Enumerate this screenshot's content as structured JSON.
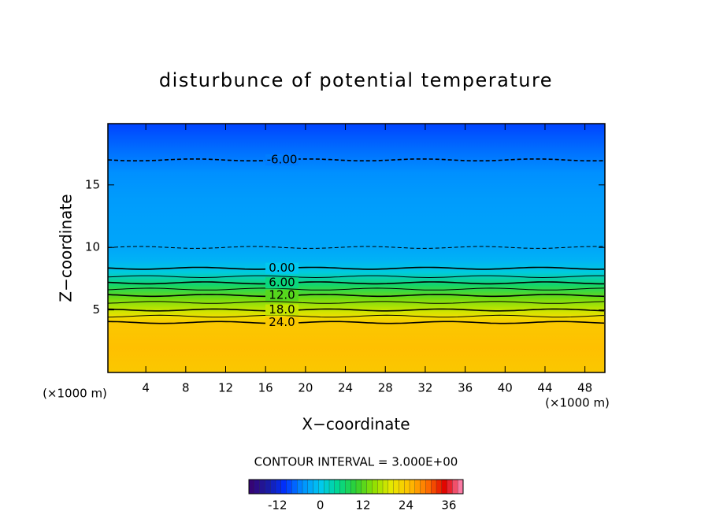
{
  "chart_data": {
    "type": "contour",
    "title": "disturbunce of potential temperature",
    "x_label": "X−coordinate",
    "y_label": "Z−coordinate",
    "x_unit": "(×1000 m)",
    "y_unit": "(×1000 m)",
    "xlim": [
      0.2,
      50
    ],
    "ylim": [
      0,
      19.9
    ],
    "xticks": [
      4,
      8,
      12,
      16,
      20,
      24,
      28,
      32,
      36,
      40,
      44,
      48
    ],
    "yticks": [
      5,
      10,
      15
    ],
    "profile": {
      "z": [
        0,
        2,
        4,
        4.5,
        5,
        6,
        7,
        8,
        9,
        10,
        12,
        14,
        16,
        17,
        18,
        19,
        19.9
      ],
      "values": [
        24,
        25,
        24,
        21,
        18,
        13,
        7,
        1,
        -2,
        -3,
        -3.5,
        -4,
        -5,
        -6,
        -7,
        -8,
        -9
      ]
    },
    "contour_interval": 3,
    "contour_interval_label": "CONTOUR INTERVAL = 3.000E+00",
    "contour_labels": [
      {
        "value": -6,
        "label": "-6.00"
      },
      {
        "value": 0,
        "label": "0.00"
      },
      {
        "value": 6,
        "label": "6.00"
      },
      {
        "value": 12,
        "label": "12.0"
      },
      {
        "value": 18,
        "label": "18.0"
      },
      {
        "value": 24,
        "label": "24.0"
      }
    ],
    "colorbar": {
      "lim": [
        -20,
        40
      ],
      "ticks": [
        -12,
        0,
        12,
        24,
        36
      ]
    },
    "colormap": [
      "#3a0070",
      "#1a1aa0",
      "#0030ff",
      "#0090ff",
      "#00c8f0",
      "#00d890",
      "#30d030",
      "#90e000",
      "#e8e800",
      "#ffc000",
      "#ff7000",
      "#e00000",
      "#ff90c0"
    ]
  }
}
